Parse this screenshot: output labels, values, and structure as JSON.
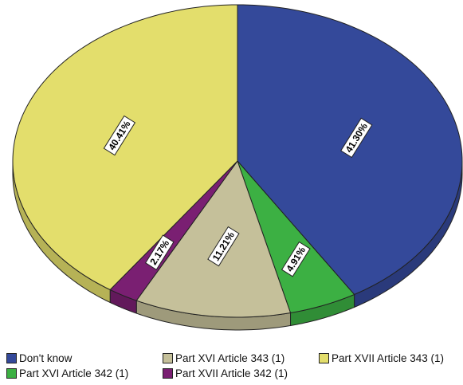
{
  "chart_data": {
    "type": "pie",
    "title": "",
    "slices": [
      {
        "name": "Don't know",
        "value": 41.3,
        "label": "41.30%",
        "color": "#34499a"
      },
      {
        "name": "Part XVI Article 342 (1)",
        "value": 4.91,
        "label": "4.91%",
        "color": "#3cb043"
      },
      {
        "name": "Part XVI Article 343 (1)",
        "value": 11.21,
        "label": "11.21%",
        "color": "#c5c09a"
      },
      {
        "name": "Part XVII Article 342 (1)",
        "value": 2.17,
        "label": "2.17%",
        "color": "#7a1f72"
      },
      {
        "name": "Part XVII Article 343 (1)",
        "value": 40.41,
        "label": "40.41%",
        "color": "#e3de6c"
      }
    ],
    "legend": {
      "placement": "bottom",
      "rows": [
        [
          {
            "label": "Don't know",
            "color": "#34499a"
          },
          {
            "label": "Part XVI Article 343 (1)",
            "color": "#c5c09a"
          },
          {
            "label": "Part XVII Article 343 (1)",
            "color": "#e3de6c"
          }
        ],
        [
          {
            "label": "Part XVI Article 342 (1)",
            "color": "#3cb043"
          },
          {
            "label": "Part XVII Article 342 (1)",
            "color": "#7a1f72"
          }
        ]
      ]
    },
    "style": "3d-tilted"
  }
}
